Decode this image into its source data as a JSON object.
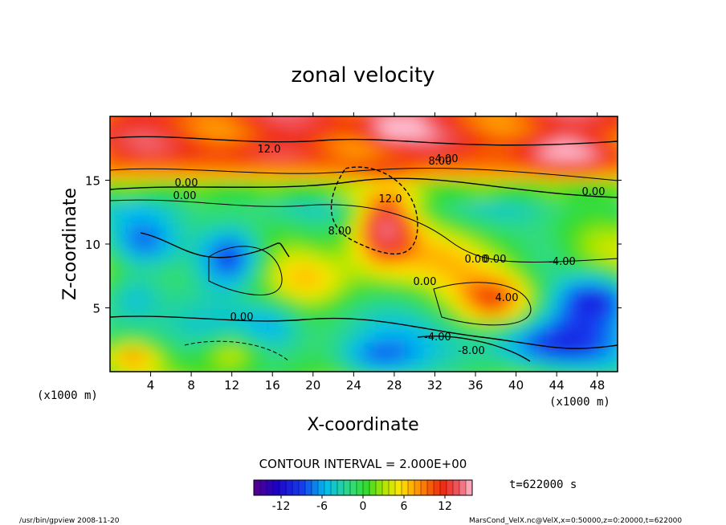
{
  "chart_data": {
    "type": "heatmap",
    "title": "zonal velocity",
    "xlabel": "X-coordinate",
    "ylabel": "Z-coordinate",
    "x_unit": "(x1000 m)",
    "y_unit": "(x1000 m)",
    "xlim": [
      0,
      50
    ],
    "ylim": [
      0,
      20
    ],
    "x_ticks": [
      4,
      8,
      12,
      16,
      20,
      24,
      28,
      32,
      36,
      40,
      44,
      48
    ],
    "y_ticks": [
      5,
      10,
      15
    ],
    "contour_interval_text": "CONTOUR INTERVAL = 2.000E+00",
    "colorbar": {
      "min": -16,
      "max": 16,
      "ticks": [
        -12,
        -6,
        0,
        6,
        12
      ]
    },
    "contour_labels": [
      "12.0",
      "8.00",
      "0.00",
      "0.00",
      "8.00",
      "12.0",
      "0.00",
      "4.00",
      "0.00",
      "0.00",
      "-4.00",
      "4.00",
      "0.00",
      "0.00",
      "-4.00",
      "-8.00"
    ],
    "time_text": "t=622000 s",
    "footer_left": "/usr/bin/gpview  2008-11-20",
    "footer_right": "MarsCond_VelX.nc@VelX,x=0:50000,z=0:20000,t=622000"
  }
}
